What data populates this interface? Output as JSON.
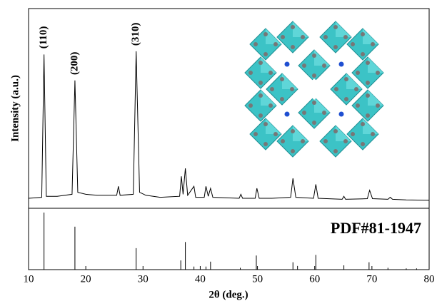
{
  "chart_data": [
    {
      "type": "line",
      "ylabel": "Intensity (a.u.)",
      "color": "#000000",
      "xlim": [
        10,
        80
      ],
      "ylim": [
        0,
        100
      ],
      "x": [
        10,
        12.3,
        12.7,
        13.1,
        15,
        17.6,
        18.1,
        18.6,
        20,
        22,
        25.4,
        25.7,
        26.0,
        28.3,
        28.8,
        29.4,
        30.5,
        33,
        36.4,
        36.7,
        37.0,
        37.4,
        37.8,
        38.9,
        39.2,
        40.7,
        41.0,
        41.4,
        41.8,
        42.2,
        46.8,
        47.1,
        47.4,
        49.6,
        49.9,
        50.3,
        52.5,
        55.8,
        56.2,
        56.7,
        59.8,
        60.2,
        60.6,
        64.8,
        65.1,
        65.4,
        69.2,
        69.6,
        70.1,
        72.8,
        73.2,
        73.6,
        76,
        80
      ],
      "values": [
        5,
        5.5,
        77,
        6,
        6,
        7,
        64,
        8,
        7,
        6.5,
        6.5,
        11,
        6.5,
        7,
        78.6,
        8,
        6.5,
        5.5,
        6,
        16,
        7,
        20,
        6.5,
        11,
        5.5,
        5.5,
        11,
        6,
        10,
        5.5,
        5,
        7,
        5,
        5,
        10,
        5,
        5,
        5.5,
        15,
        5.5,
        5,
        12,
        5,
        4.5,
        6,
        4.5,
        4.8,
        9,
        4.8,
        4.5,
        5.5,
        4.5,
        4.2,
        4
      ],
      "annotations": [
        {
          "text": "(110)",
          "x": 12.7
        },
        {
          "text": "(200)",
          "x": 18.1
        },
        {
          "text": "(310)",
          "x": 28.8
        }
      ]
    },
    {
      "type": "stem",
      "label": "PDF#81-1947",
      "xlabel": "2θ (deg.)",
      "color": "#000000",
      "xlim": [
        10,
        80
      ],
      "ylim": [
        0,
        100
      ],
      "xticks": [
        10,
        20,
        30,
        40,
        50,
        60,
        70,
        80
      ],
      "x": [
        12.7,
        18.1,
        28.8,
        36.6,
        37.4,
        38.9,
        41.0,
        41.8,
        47.0,
        49.8,
        56.2,
        57.0,
        60.2,
        65.1,
        69.5,
        72.8,
        76.0,
        77.8
      ],
      "values": [
        93,
        70,
        35,
        15,
        45,
        5,
        5,
        13,
        3,
        23,
        12,
        6,
        24,
        7,
        12,
        3,
        2,
        2
      ]
    }
  ]
}
